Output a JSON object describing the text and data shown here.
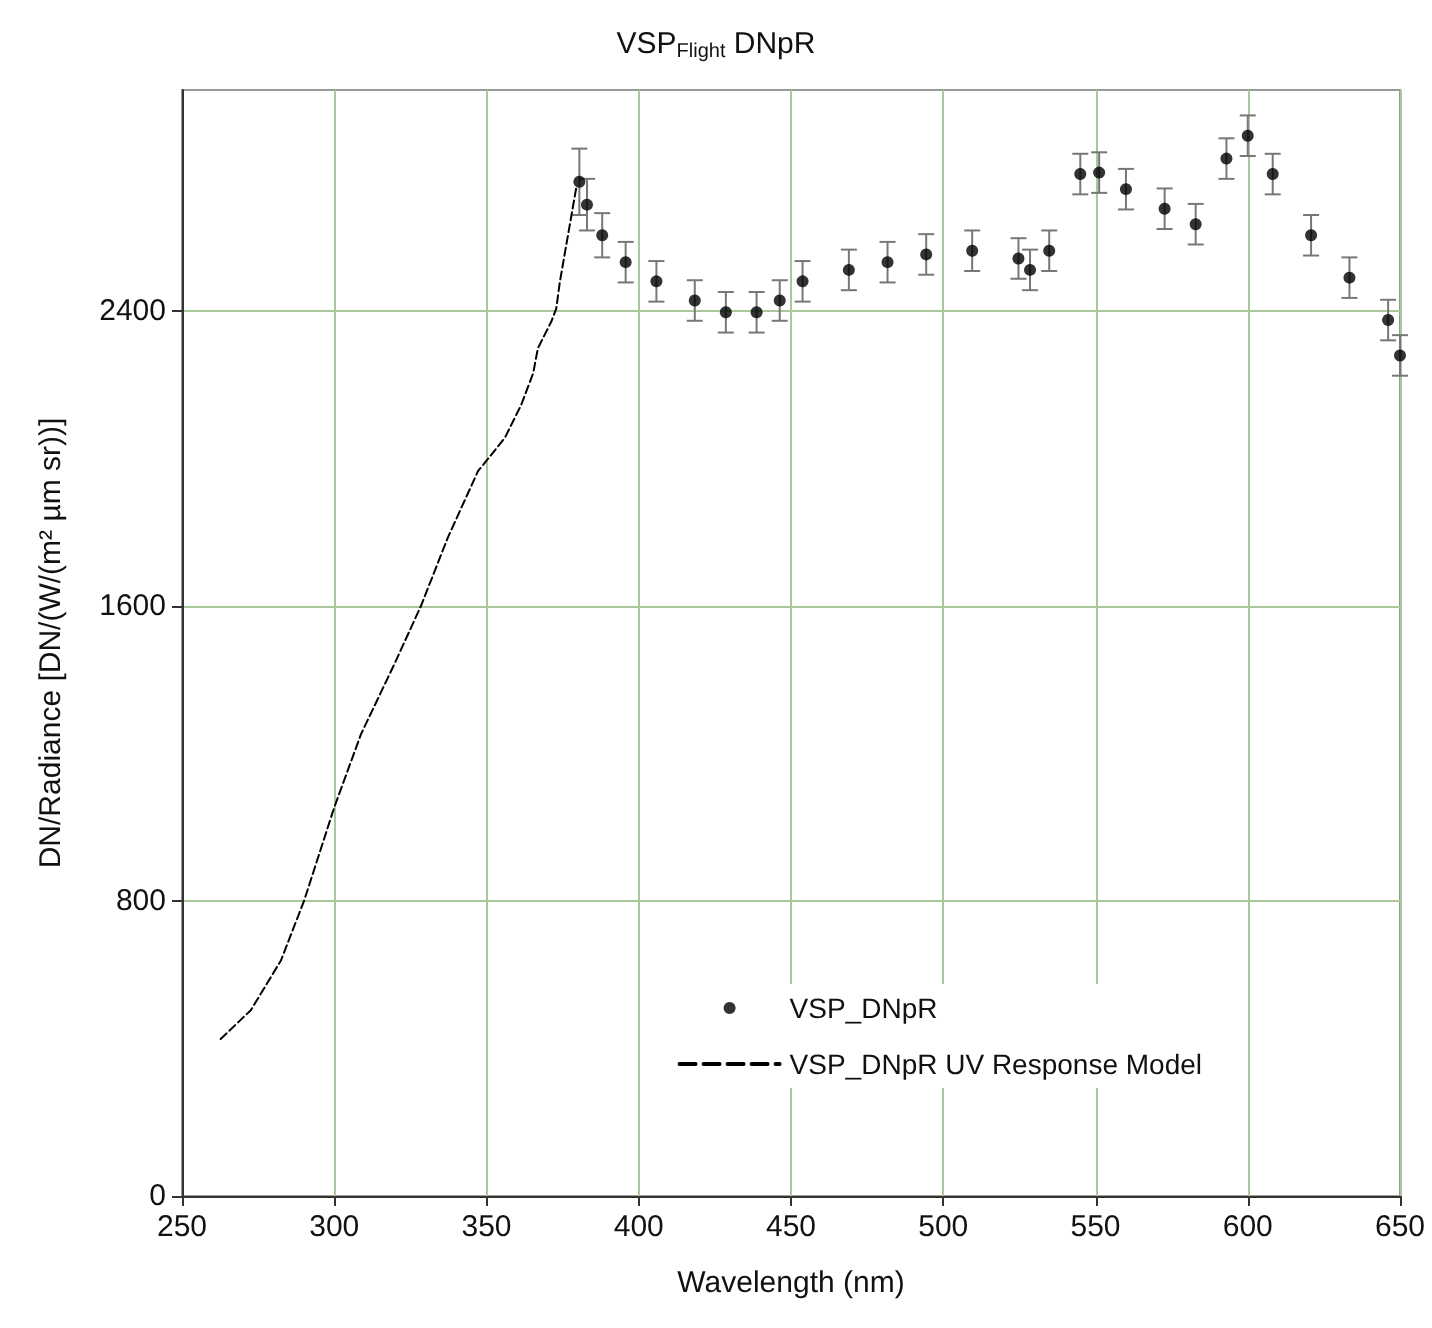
{
  "chart_data": {
    "type": "scatter",
    "title": "VSP$_{Flight}$ DNpR",
    "xlabel": "Wavelength (nm)",
    "ylabel": "DN/Radiance [DN/(W/(m² µm sr))]",
    "xlim": [
      250,
      650
    ],
    "xticks": [
      250,
      300,
      350,
      400,
      450,
      500,
      550,
      600,
      650
    ],
    "ylim": [
      0,
      3000
    ],
    "yticks": [
      0,
      800,
      1600,
      2400
    ],
    "grid": true,
    "legend": "bottom right",
    "series": [
      {
        "name": "VSP_DNpR",
        "marker": "circle",
        "color": "#000000",
        "x": [
          380.5,
          383,
          388,
          395.7,
          405.8,
          418.4,
          428.6,
          438.7,
          446.3,
          453.8,
          469,
          481.7,
          494.4,
          509.5,
          524.7,
          528.5,
          534.8,
          545,
          551.2,
          560,
          572.7,
          582.9,
          593,
          600,
          608.2,
          620.8,
          633.4,
          646.1,
          650
        ],
        "values": [
          2751,
          2689,
          2606,
          2533,
          2481,
          2429,
          2397,
          2397,
          2429,
          2481,
          2512,
          2533,
          2554,
          2564,
          2543,
          2512,
          2564,
          2772,
          2776,
          2731,
          2678,
          2636,
          2814,
          2876,
          2772,
          2606,
          2491,
          2376,
          2280
        ],
        "errors": [
          90,
          70,
          60,
          55,
          55,
          55,
          55,
          55,
          55,
          55,
          55,
          55,
          55,
          55,
          55,
          55,
          55,
          55,
          55,
          55,
          55,
          55,
          55,
          55,
          55,
          55,
          55,
          55,
          55
        ]
      },
      {
        "name": "VSP_DNpR UV Response Model",
        "type": "line",
        "marker": "none",
        "line_style": "dashed",
        "color": "#000000",
        "x": [
          262.7,
          272.6,
          282.5,
          290.1,
          300,
          308.8,
          319.7,
          328.5,
          337.3,
          347.2,
          356,
          361.4,
          365.3,
          366.9,
          371.3,
          372.9,
          374.1,
          379.6
        ],
        "values": [
          426,
          504,
          639,
          801,
          1054,
          1253,
          1442,
          1601,
          1786,
          1966,
          2056,
          2146,
          2231,
          2300,
          2372,
          2407,
          2480,
          2741
        ]
      }
    ]
  }
}
